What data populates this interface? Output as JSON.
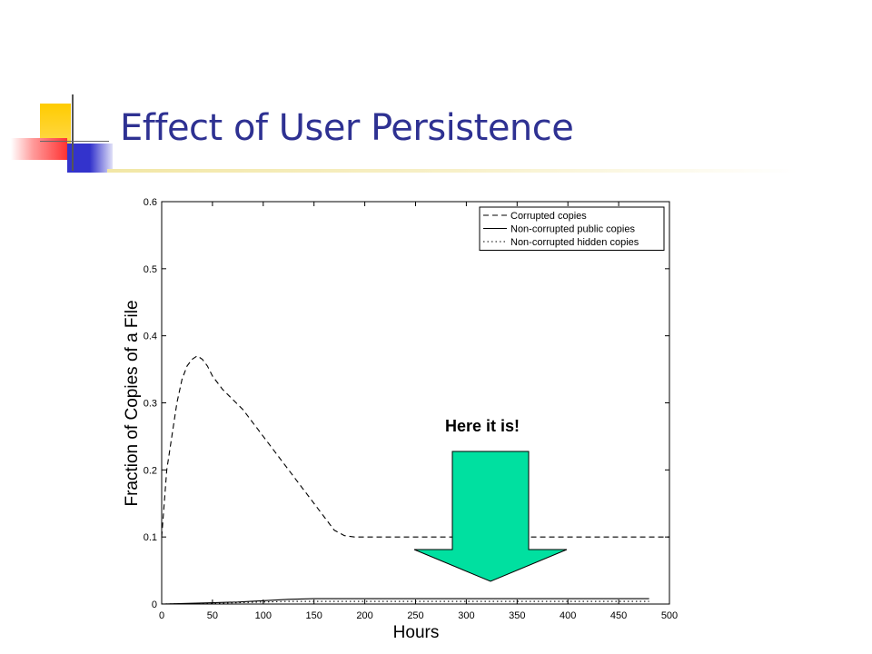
{
  "slide": {
    "title": "Effect of User Persistence",
    "callout_text": "Here it is!"
  },
  "colors": {
    "title": "#2e3192",
    "arrow_fill": "#00e0a0",
    "deco_yellow": "#ffcc00",
    "deco_blue": "#3333cc",
    "deco_red": "#ff3333"
  },
  "chart_data": {
    "type": "line",
    "xlabel": "Hours",
    "ylabel": "Fraction of Copies of a File",
    "xlim": [
      0,
      500
    ],
    "ylim": [
      0,
      0.6
    ],
    "xticks": [
      "0",
      "50",
      "100",
      "150",
      "200",
      "250",
      "300",
      "350",
      "400",
      "450",
      "500"
    ],
    "yticks": [
      "0",
      "0.1",
      "0.2",
      "0.3",
      "0.4",
      "0.5",
      "0.6"
    ],
    "grid": false,
    "legend_position": "top-right",
    "series": [
      {
        "name": "Corrupted copies",
        "style": "dashed",
        "x": [
          0,
          2,
          5,
          10,
          15,
          20,
          25,
          30,
          35,
          40,
          45,
          50,
          60,
          70,
          80,
          90,
          100,
          110,
          120,
          130,
          140,
          150,
          160,
          170,
          180,
          190,
          200,
          250,
          300,
          350,
          400,
          450,
          500
        ],
        "y": [
          0.1,
          0.14,
          0.2,
          0.25,
          0.3,
          0.335,
          0.355,
          0.365,
          0.37,
          0.365,
          0.355,
          0.34,
          0.32,
          0.305,
          0.29,
          0.27,
          0.25,
          0.23,
          0.21,
          0.19,
          0.17,
          0.15,
          0.13,
          0.11,
          0.102,
          0.1,
          0.1,
          0.1,
          0.1,
          0.1,
          0.1,
          0.1,
          0.1
        ]
      },
      {
        "name": "Non-corrupted public copies",
        "style": "solid",
        "x": [
          0,
          25,
          50,
          75,
          100,
          125,
          150,
          200,
          250,
          300,
          350,
          400,
          450,
          480
        ],
        "y": [
          0,
          0.001,
          0.002,
          0.003,
          0.005,
          0.007,
          0.008,
          0.008,
          0.008,
          0.008,
          0.008,
          0.008,
          0.008,
          0.008
        ]
      },
      {
        "name": "Non-corrupted hidden copies",
        "style": "dotted",
        "x": [
          0,
          25,
          50,
          75,
          100,
          125,
          150,
          200,
          250,
          300,
          350,
          400,
          450,
          480
        ],
        "y": [
          0,
          0.0005,
          0.001,
          0.002,
          0.003,
          0.004,
          0.004,
          0.004,
          0.004,
          0.004,
          0.004,
          0.004,
          0.004,
          0.004
        ]
      }
    ],
    "annotation": {
      "text": "Here it is!",
      "points_to_x": 325,
      "points_to_y": 0.02
    }
  }
}
